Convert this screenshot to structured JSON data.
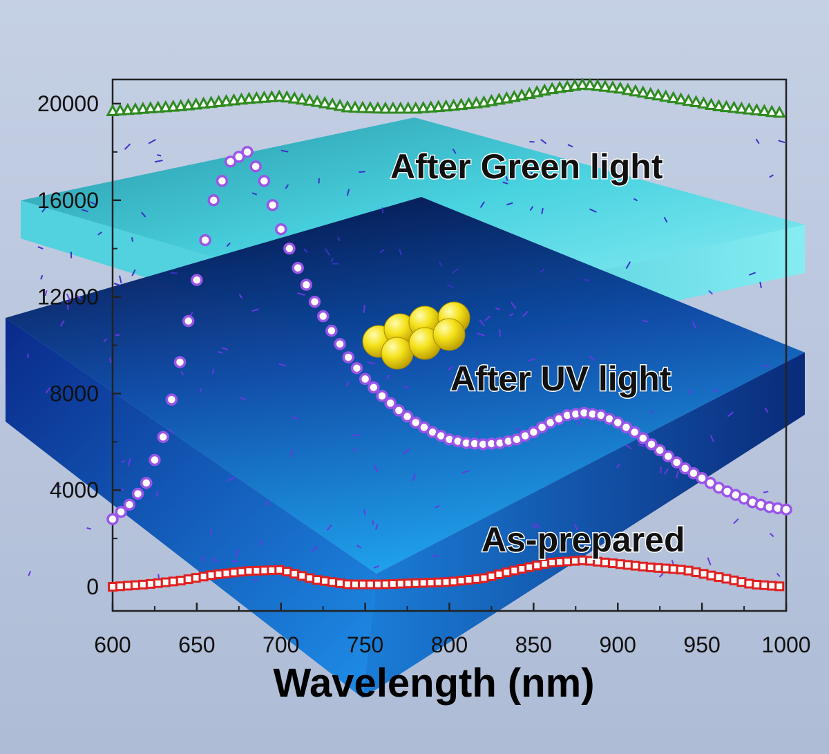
{
  "chart_data": {
    "type": "scatter",
    "xlabel": "Wavelength (nm)",
    "ylabel": "",
    "xlim": [
      600,
      1000
    ],
    "ylim": [
      -1000,
      21000
    ],
    "x_ticks": [
      600,
      650,
      700,
      750,
      800,
      850,
      900,
      950,
      1000
    ],
    "y_ticks": [
      0,
      4000,
      8000,
      12000,
      16000,
      20000
    ],
    "grid": false,
    "series": [
      {
        "name": "After Green light",
        "marker": "triangle",
        "color": "#2e8b1e",
        "x": [
          600,
          620,
          640,
          660,
          680,
          700,
          720,
          740,
          760,
          780,
          800,
          820,
          840,
          860,
          880,
          900,
          920,
          940,
          960,
          980,
          1000
        ],
        "y": [
          19700,
          19800,
          19900,
          20050,
          20200,
          20300,
          20100,
          19850,
          19800,
          19800,
          19900,
          20050,
          20300,
          20600,
          20800,
          20650,
          20400,
          20150,
          19900,
          19750,
          19600
        ]
      },
      {
        "name": "After UV light",
        "marker": "circle",
        "color": "#9a55e8",
        "x": [
          600,
          610,
          620,
          630,
          640,
          650,
          660,
          670,
          680,
          690,
          700,
          710,
          720,
          730,
          740,
          750,
          760,
          770,
          780,
          790,
          800,
          810,
          820,
          830,
          840,
          850,
          860,
          870,
          880,
          890,
          900,
          910,
          920,
          930,
          940,
          950,
          960,
          970,
          980,
          990,
          1000
        ],
        "y": [
          2800,
          3400,
          4300,
          6200,
          9300,
          12700,
          16000,
          17600,
          18000,
          16800,
          14800,
          13200,
          11800,
          10600,
          9500,
          8600,
          7900,
          7300,
          6800,
          6400,
          6100,
          5950,
          5900,
          5950,
          6100,
          6400,
          6800,
          7100,
          7200,
          7100,
          6800,
          6400,
          5900,
          5400,
          4900,
          4500,
          4100,
          3800,
          3500,
          3300,
          3200
        ]
      },
      {
        "name": "As-prepared",
        "marker": "square",
        "color": "#e02020",
        "x": [
          600,
          620,
          640,
          660,
          680,
          700,
          720,
          740,
          760,
          780,
          800,
          820,
          840,
          860,
          880,
          900,
          920,
          940,
          960,
          980,
          1000
        ],
        "y": [
          0,
          100,
          250,
          500,
          650,
          700,
          300,
          100,
          100,
          150,
          200,
          350,
          700,
          1000,
          1100,
          950,
          800,
          700,
          400,
          100,
          0
        ]
      }
    ]
  }
}
